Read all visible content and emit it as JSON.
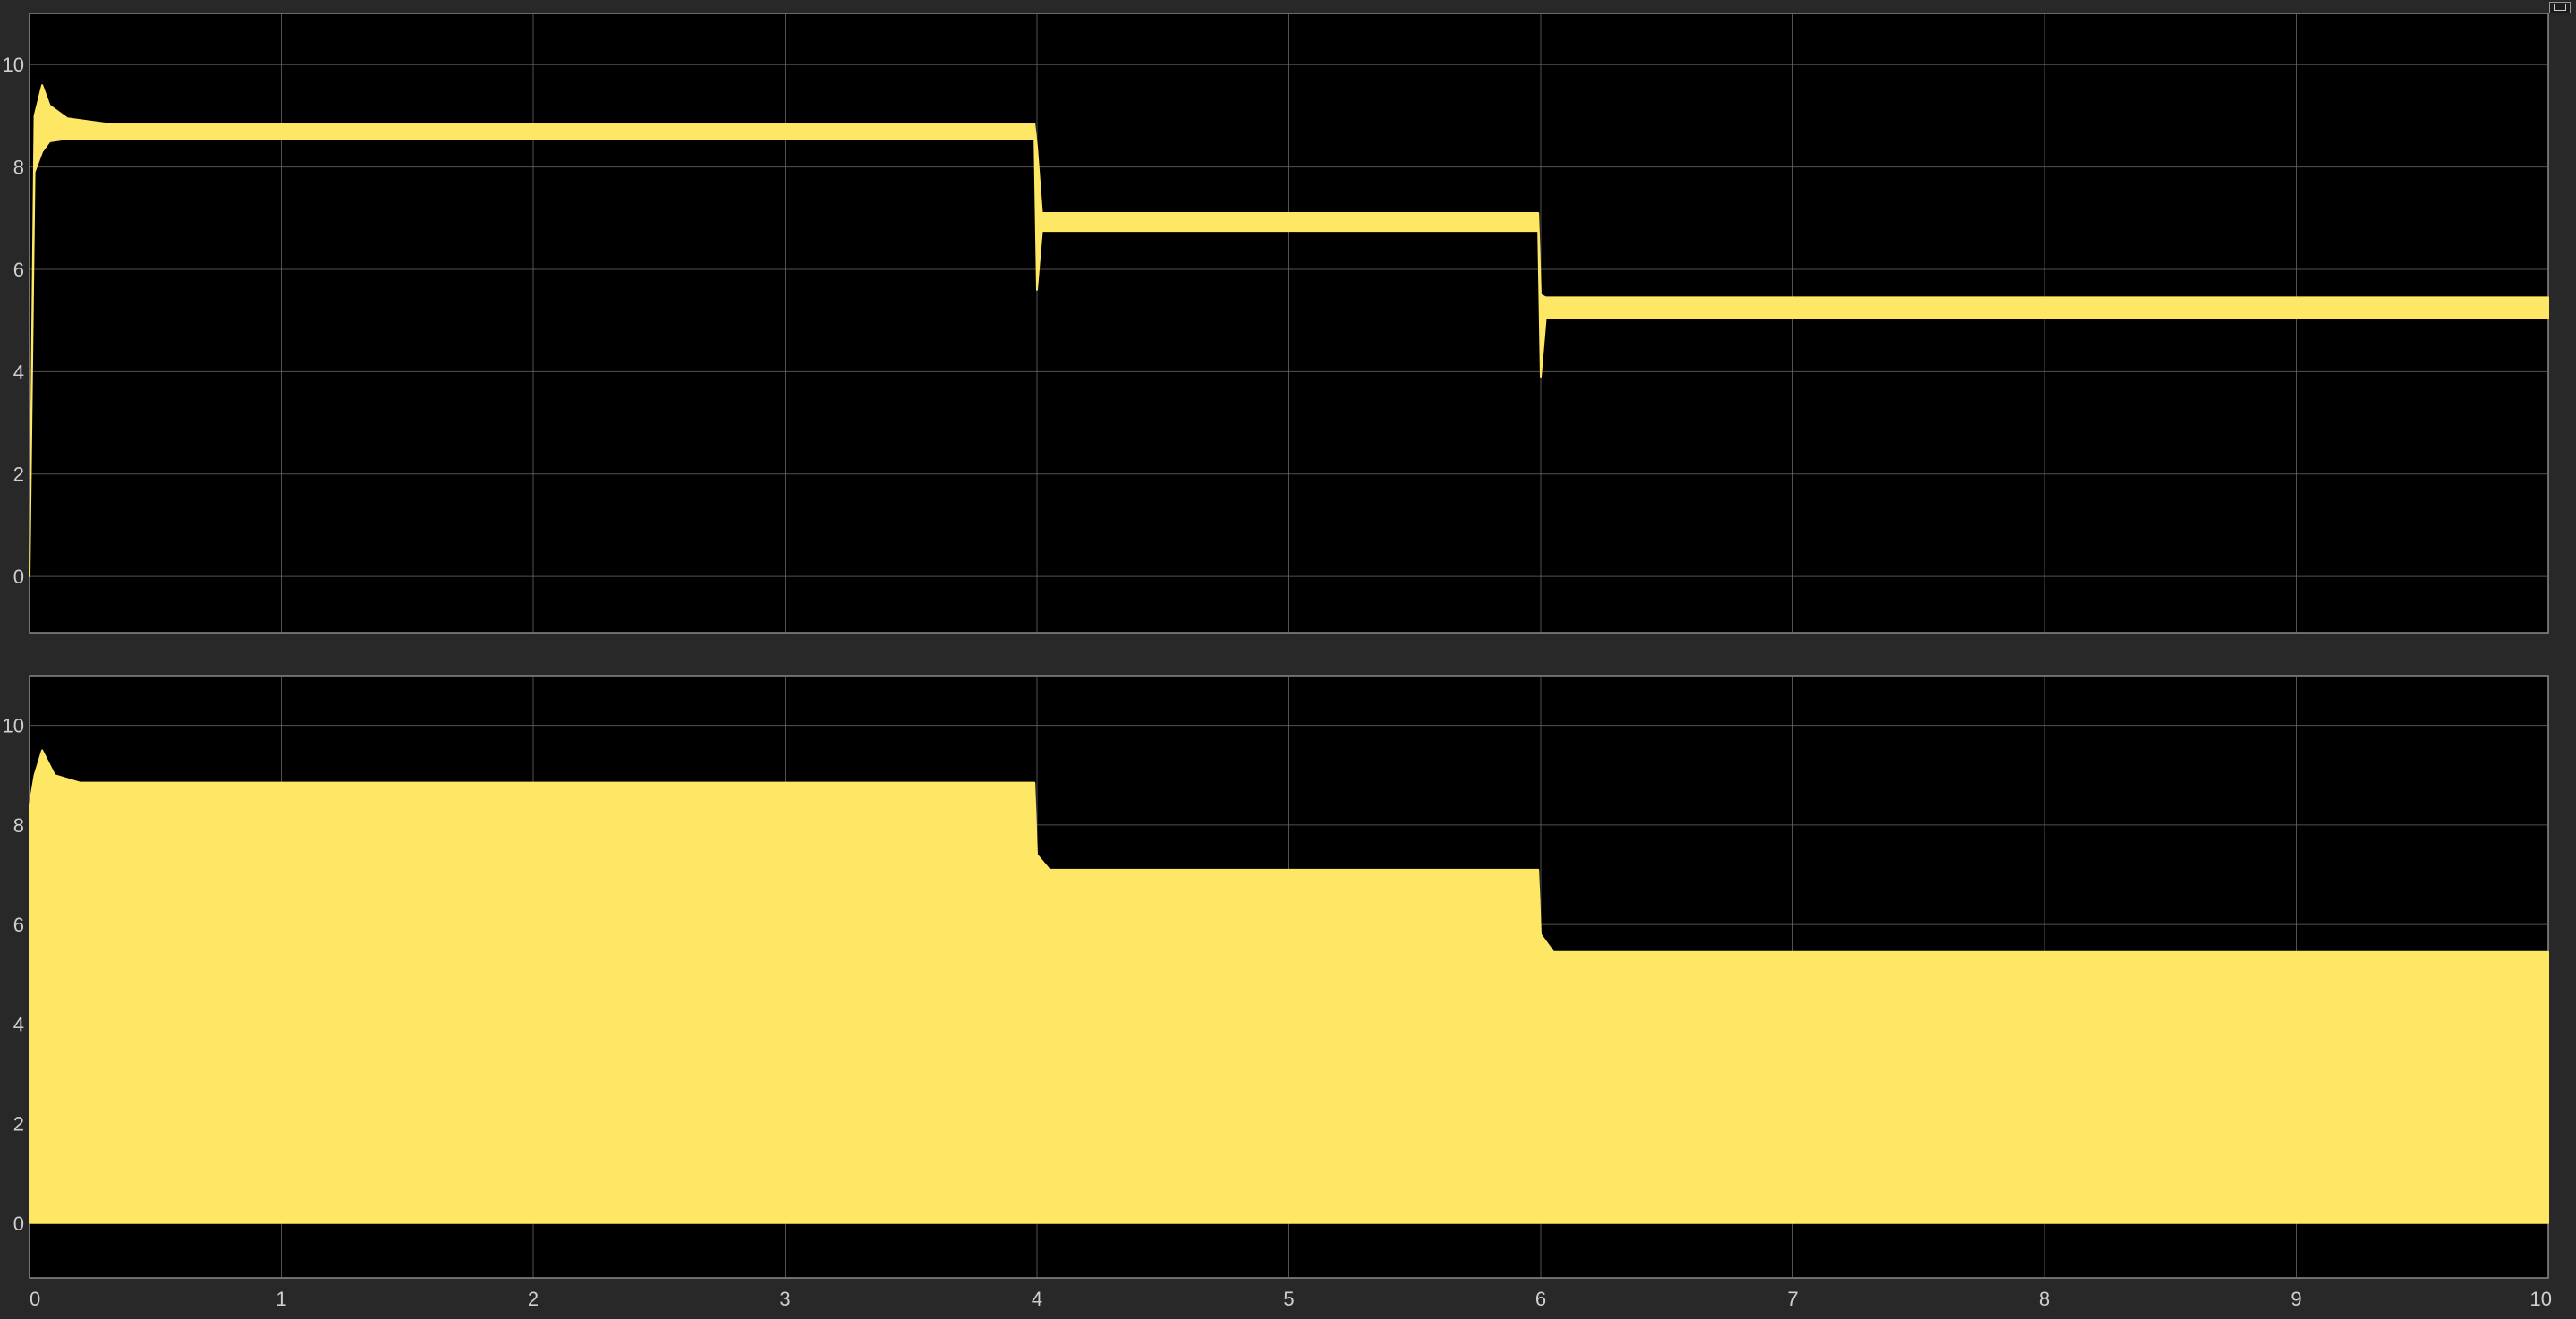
{
  "chart_data": [
    {
      "type": "line",
      "title": "",
      "xlabel": "",
      "ylabel": "",
      "xlim": [
        0,
        10
      ],
      "ylim": [
        -1.1,
        11
      ],
      "x_ticks": [
        0,
        1,
        2,
        3,
        4,
        5,
        6,
        7,
        8,
        9,
        10
      ],
      "y_ticks": [
        0,
        2,
        4,
        6,
        8,
        10
      ],
      "grid": true,
      "series": [
        {
          "color": "#ffe766",
          "band": true,
          "x": [
            0,
            0.02,
            0.05,
            0.08,
            0.15,
            0.3,
            3.99,
            4.0,
            4.02,
            4.1,
            5.99,
            6.0,
            6.02,
            6.1,
            10.0
          ],
          "upper": [
            0,
            9.0,
            9.6,
            9.2,
            8.95,
            8.85,
            8.85,
            8.4,
            7.1,
            7.1,
            7.1,
            5.5,
            5.45,
            5.45,
            5.45
          ],
          "lower": [
            0,
            7.9,
            8.3,
            8.5,
            8.55,
            8.55,
            8.55,
            5.6,
            6.75,
            6.75,
            6.75,
            3.9,
            5.05,
            5.05,
            5.05
          ]
        }
      ]
    },
    {
      "type": "area",
      "title": "",
      "xlabel": "",
      "ylabel": "",
      "xlim": [
        0,
        10
      ],
      "ylim": [
        -1.1,
        11
      ],
      "x_ticks": [
        0,
        1,
        2,
        3,
        4,
        5,
        6,
        7,
        8,
        9,
        10
      ],
      "y_ticks": [
        0,
        2,
        4,
        6,
        8,
        10
      ],
      "grid": true,
      "series": [
        {
          "color": "#ffe766",
          "band": true,
          "x": [
            0,
            0.02,
            0.05,
            0.1,
            0.2,
            3.99,
            4.0,
            4.05,
            5.99,
            6.0,
            6.05,
            10.0
          ],
          "upper": [
            8.4,
            9.0,
            9.5,
            9.0,
            8.85,
            8.85,
            7.4,
            7.1,
            7.1,
            5.8,
            5.45,
            5.45
          ],
          "lower": [
            0,
            0,
            0,
            0,
            0,
            0,
            0,
            0,
            0,
            0,
            0,
            0
          ]
        }
      ]
    }
  ]
}
